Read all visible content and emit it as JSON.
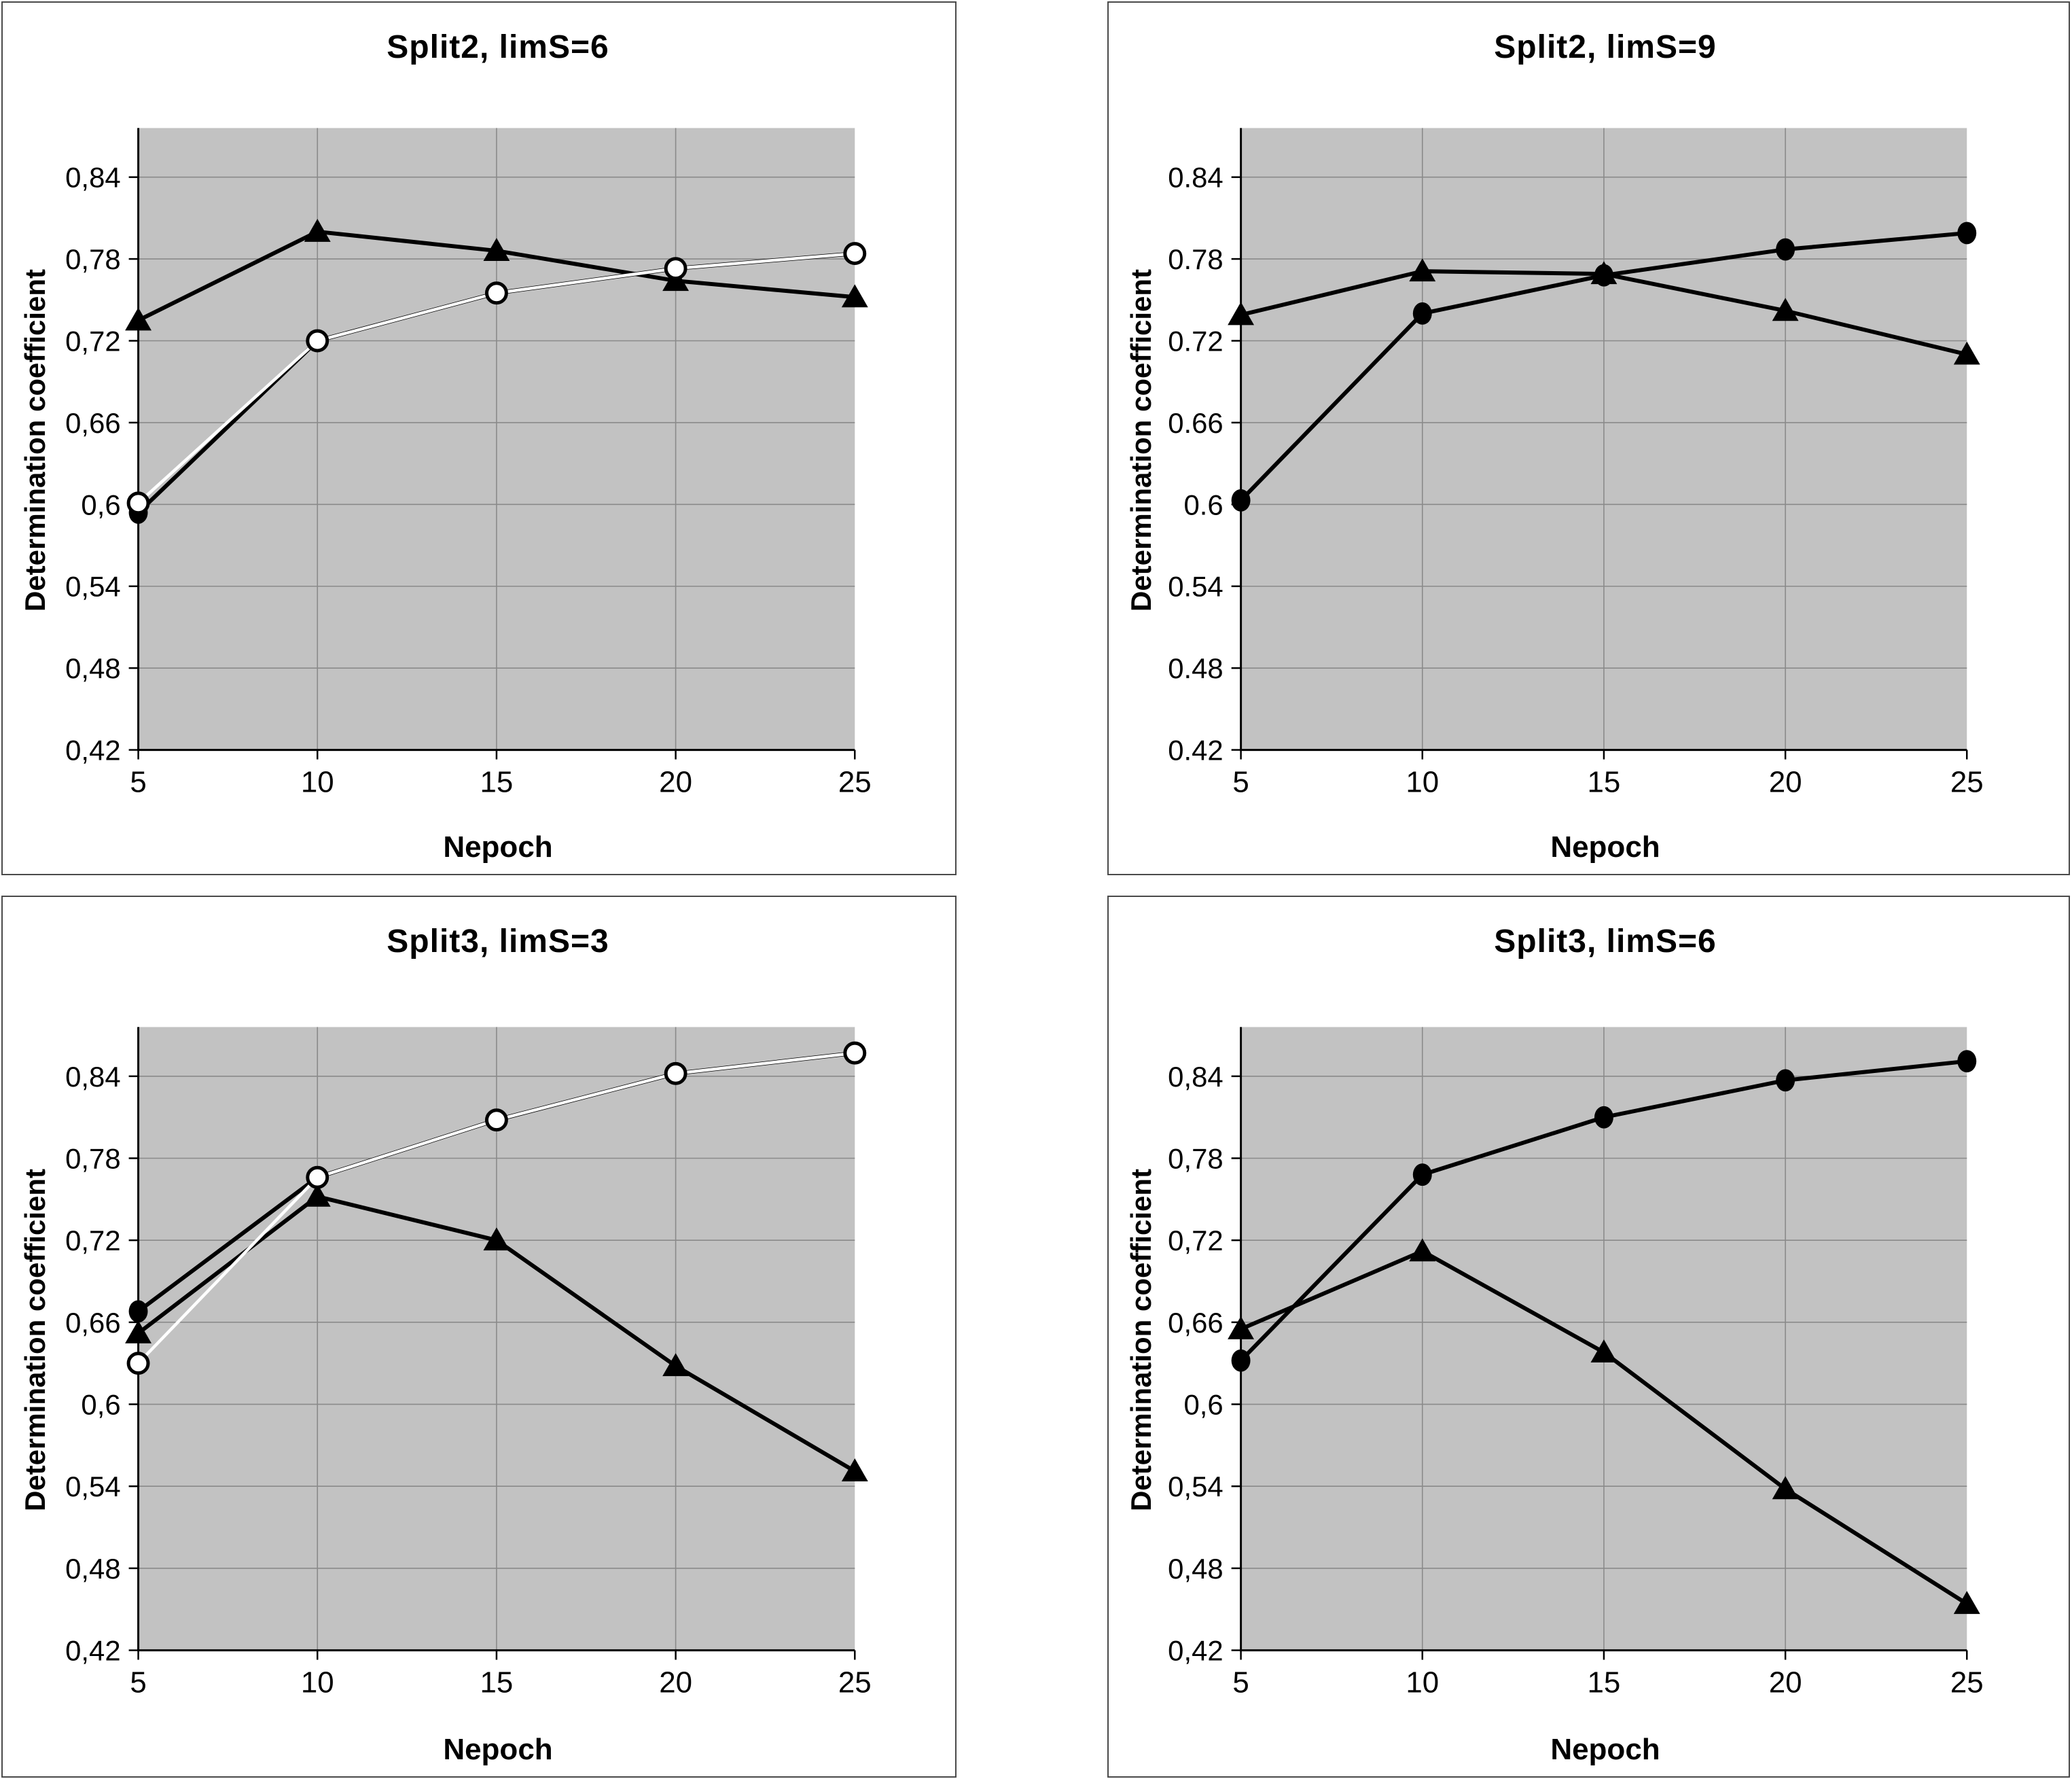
{
  "colors": {
    "plot_background": "#c2c2c2",
    "gridline": "#8a8a8a",
    "axis": "#000000",
    "panel_border": "#4a4a4a",
    "marker_fill": "#000000",
    "open_marker_fill": "#ffffff",
    "text": "#000000"
  },
  "chart_data": [
    {
      "type": "line",
      "position": "top-left",
      "title": "Split2, limS=6",
      "xlabel": "Nepoch",
      "ylabel": "Determination coefficient",
      "x": [
        5,
        10,
        15,
        20,
        25
      ],
      "x_tick_labels": [
        "5",
        "10",
        "15",
        "20",
        "25"
      ],
      "y_ticks": [
        0.84,
        0.78,
        0.72,
        0.66,
        0.6,
        0.54,
        0.48,
        0.42
      ],
      "y_tick_labels": [
        "0,84",
        "0,78",
        "0,72",
        "0,66",
        "0,6",
        "0,54",
        "0,48",
        "0,42"
      ],
      "ylim": [
        0.42,
        0.876
      ],
      "grid": true,
      "legend": "none",
      "series": [
        {
          "name": "filled-circle-series",
          "marker": "filled-circle",
          "line_color": "#000000",
          "values": [
            0.594,
            0.72,
            0.755,
            0.773,
            0.784
          ]
        },
        {
          "name": "triangle-series",
          "marker": "filled-triangle",
          "line_color": "#000000",
          "values": [
            0.735,
            0.8,
            0.786,
            0.764,
            0.752
          ]
        },
        {
          "name": "open-circle-series",
          "marker": "open-circle",
          "line_color": "#ffffff",
          "values": [
            0.601,
            0.72,
            0.755,
            0.773,
            0.784
          ]
        }
      ]
    },
    {
      "type": "line",
      "position": "top-right",
      "title": "Split2, limS=9",
      "xlabel": "Nepoch",
      "ylabel": "Determination coefficient",
      "x": [
        5,
        10,
        15,
        20,
        25
      ],
      "x_tick_labels": [
        "5",
        "10",
        "15",
        "20",
        "25"
      ],
      "y_ticks": [
        0.84,
        0.78,
        0.72,
        0.66,
        0.6,
        0.54,
        0.48,
        0.42
      ],
      "y_tick_labels": [
        "0.84",
        "0.78",
        "0.72",
        "0.66",
        "0.6",
        "0.54",
        "0.48",
        "0.42"
      ],
      "ylim": [
        0.42,
        0.876
      ],
      "grid": true,
      "legend": "none",
      "series": [
        {
          "name": "triangle-series",
          "marker": "filled-triangle",
          "line_color": "#000000",
          "values": [
            0.739,
            0.771,
            0.769,
            0.742,
            0.71
          ]
        },
        {
          "name": "filled-circle-series",
          "marker": "filled-circle",
          "line_color": "#000000",
          "values": [
            0.603,
            0.74,
            0.768,
            0.787,
            0.799
          ]
        }
      ]
    },
    {
      "type": "line",
      "position": "bottom-left",
      "title": "Split3, limS=3",
      "xlabel": "Nepoch",
      "ylabel": "Determination coefficient",
      "x": [
        5,
        10,
        15,
        20,
        25
      ],
      "x_tick_labels": [
        "5",
        "10",
        "15",
        "20",
        "25"
      ],
      "y_ticks": [
        0.84,
        0.78,
        0.72,
        0.66,
        0.6,
        0.54,
        0.48,
        0.42
      ],
      "y_tick_labels": [
        "0,84",
        "0,78",
        "0,72",
        "0,66",
        "0,6",
        "0,54",
        "0,48",
        "0,42"
      ],
      "ylim": [
        0.42,
        0.876
      ],
      "grid": true,
      "legend": "none",
      "series": [
        {
          "name": "filled-circle-series",
          "marker": "filled-circle",
          "line_color": "#000000",
          "values": [
            0.668,
            0.766,
            0.808,
            0.842,
            0.857
          ]
        },
        {
          "name": "triangle-series",
          "marker": "filled-triangle",
          "line_color": "#000000",
          "values": [
            0.652,
            0.752,
            0.72,
            0.628,
            0.551
          ]
        },
        {
          "name": "open-circle-series",
          "marker": "open-circle",
          "line_color": "#ffffff",
          "values": [
            0.63,
            0.766,
            0.808,
            0.842,
            0.857
          ]
        }
      ]
    },
    {
      "type": "line",
      "position": "bottom-right",
      "title": "Split3, limS=6",
      "xlabel": "Nepoch",
      "ylabel": "Determination coefficient",
      "x": [
        5,
        10,
        15,
        20,
        25
      ],
      "x_tick_labels": [
        "5",
        "10",
        "15",
        "20",
        "25"
      ],
      "y_ticks": [
        0.84,
        0.78,
        0.72,
        0.66,
        0.6,
        0.54,
        0.48,
        0.42
      ],
      "y_tick_labels": [
        "0,84",
        "0,78",
        "0,72",
        "0,66",
        "0,6",
        "0,54",
        "0,48",
        "0,42"
      ],
      "ylim": [
        0.42,
        0.876
      ],
      "grid": true,
      "legend": "none",
      "series": [
        {
          "name": "triangle-series",
          "marker": "filled-triangle",
          "line_color": "#000000",
          "values": [
            0.655,
            0.712,
            0.638,
            0.538,
            0.454
          ]
        },
        {
          "name": "filled-circle-series",
          "marker": "filled-circle",
          "line_color": "#000000",
          "values": [
            0.632,
            0.768,
            0.81,
            0.837,
            0.851
          ]
        }
      ]
    }
  ]
}
